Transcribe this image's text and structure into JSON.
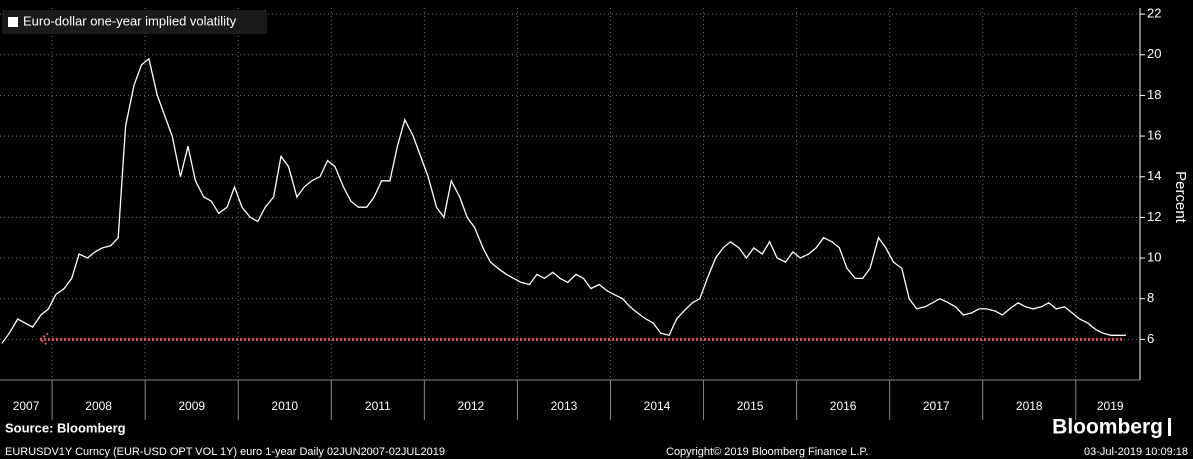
{
  "chart_data": {
    "type": "line",
    "series": [
      {
        "name": "Euro-dollar one-year implied volatility",
        "color": "#ffffff",
        "values": [
          5.8,
          6.3,
          7.0,
          6.8,
          6.6,
          7.2,
          7.5,
          8.2,
          8.5,
          9.0,
          10.2,
          10.0,
          10.3,
          10.5,
          10.6,
          11.0,
          16.5,
          18.5,
          19.5,
          19.8,
          18.0,
          17.0,
          16.0,
          14.0,
          15.5,
          13.8,
          13.0,
          12.8,
          12.2,
          12.5,
          13.5,
          12.5,
          12.0,
          11.8,
          12.5,
          13.0,
          15.0,
          14.5,
          13.0,
          13.5,
          13.8,
          14.0,
          14.8,
          14.5,
          13.5,
          12.8,
          12.5,
          12.5,
          13.0,
          13.8,
          13.8,
          15.5,
          16.8,
          16.0,
          15.0,
          14.0,
          12.5,
          12.0,
          13.8,
          13.0,
          12.0,
          11.5,
          10.5,
          9.8,
          9.5,
          9.2,
          9.0,
          8.8,
          8.7,
          9.2,
          9.0,
          9.3,
          9.0,
          8.8,
          9.2,
          9.0,
          8.5,
          8.7,
          8.4,
          8.2,
          8.0,
          7.6,
          7.3,
          7.0,
          6.8,
          6.3,
          6.2,
          7.0,
          7.4,
          7.8,
          8.0,
          9.0,
          10.0,
          10.5,
          10.8,
          10.5,
          10.0,
          10.5,
          10.2,
          10.8,
          10.0,
          9.8,
          10.3,
          10.0,
          10.2,
          10.5,
          11.0,
          10.8,
          10.5,
          9.5,
          9.0,
          9.0,
          9.5,
          11.0,
          10.5,
          9.8,
          9.5,
          8.0,
          7.5,
          7.6,
          7.8,
          8.0,
          7.8,
          7.6,
          7.2,
          7.3,
          7.5,
          7.5,
          7.4,
          7.2,
          7.5,
          7.8,
          7.6,
          7.5,
          7.6,
          7.8,
          7.5,
          7.6,
          7.3,
          7.0,
          6.8,
          6.5,
          6.3,
          6.2,
          6.2,
          6.2
        ]
      }
    ],
    "x": [
      2007.46,
      2007.54,
      2007.63,
      2007.71,
      2007.79,
      2007.88,
      2007.96,
      2008.04,
      2008.13,
      2008.21,
      2008.29,
      2008.38,
      2008.46,
      2008.54,
      2008.63,
      2008.71,
      2008.79,
      2008.88,
      2008.96,
      2009.04,
      2009.13,
      2009.21,
      2009.29,
      2009.38,
      2009.46,
      2009.54,
      2009.63,
      2009.71,
      2009.79,
      2009.88,
      2009.96,
      2010.04,
      2010.13,
      2010.21,
      2010.29,
      2010.38,
      2010.46,
      2010.54,
      2010.63,
      2010.71,
      2010.79,
      2010.88,
      2010.96,
      2011.04,
      2011.13,
      2011.21,
      2011.29,
      2011.38,
      2011.46,
      2011.54,
      2011.63,
      2011.71,
      2011.79,
      2011.88,
      2011.96,
      2012.04,
      2012.13,
      2012.21,
      2012.29,
      2012.38,
      2012.46,
      2012.54,
      2012.63,
      2012.71,
      2012.79,
      2012.88,
      2012.96,
      2013.04,
      2013.13,
      2013.21,
      2013.29,
      2013.38,
      2013.46,
      2013.54,
      2013.63,
      2013.71,
      2013.79,
      2013.88,
      2013.96,
      2014.04,
      2014.13,
      2014.21,
      2014.29,
      2014.38,
      2014.46,
      2014.54,
      2014.63,
      2014.71,
      2014.79,
      2014.88,
      2014.96,
      2015.04,
      2015.13,
      2015.21,
      2015.29,
      2015.38,
      2015.46,
      2015.54,
      2015.63,
      2015.71,
      2015.79,
      2015.88,
      2015.96,
      2016.04,
      2016.13,
      2016.21,
      2016.29,
      2016.38,
      2016.46,
      2016.54,
      2016.63,
      2016.71,
      2016.79,
      2016.88,
      2016.96,
      2017.04,
      2017.13,
      2017.21,
      2017.29,
      2017.38,
      2017.46,
      2017.54,
      2017.63,
      2017.71,
      2017.79,
      2017.88,
      2017.96,
      2018.04,
      2018.13,
      2018.21,
      2018.29,
      2018.38,
      2018.46,
      2018.54,
      2018.63,
      2018.71,
      2018.79,
      2018.88,
      2018.96,
      2019.04,
      2019.13,
      2019.21,
      2019.29,
      2019.38,
      2019.46,
      2019.54
    ],
    "xlim": [
      2007.44,
      2019.69
    ],
    "xticks": [
      {
        "value": 2007.72,
        "label": "2007"
      },
      {
        "value": 2008.5,
        "label": "2008"
      },
      {
        "value": 2009.5,
        "label": "2009"
      },
      {
        "value": 2010.5,
        "label": "2010"
      },
      {
        "value": 2011.5,
        "label": "2011"
      },
      {
        "value": 2012.5,
        "label": "2012"
      },
      {
        "value": 2013.5,
        "label": "2013"
      },
      {
        "value": 2014.5,
        "label": "2014"
      },
      {
        "value": 2015.5,
        "label": "2015"
      },
      {
        "value": 2016.5,
        "label": "2016"
      },
      {
        "value": 2017.5,
        "label": "2017"
      },
      {
        "value": 2018.5,
        "label": "2018"
      },
      {
        "value": 2019.37,
        "label": "2019"
      }
    ],
    "xgrid": [
      2008,
      2009,
      2010,
      2011,
      2012,
      2013,
      2014,
      2015,
      2016,
      2017,
      2018,
      2019
    ],
    "ylim": [
      4,
      22.3
    ],
    "yticks": [
      6,
      8,
      10,
      12,
      14,
      16,
      18,
      20,
      22
    ],
    "y_label": "Percent",
    "grid": true,
    "hline": 6,
    "hline_x": [
      2007.87,
      2019.5
    ],
    "hline_color": "#e05555"
  },
  "footer": {
    "source": "Source: Bloomberg",
    "description": "EURUSDV1Y Curncy (EUR-USD OPT VOL 1Y) euro 1-year  Daily 02JUN2007-02JUL2019",
    "copyright": "Copyright© 2019 Bloomberg Finance L.P.",
    "logo": "Bloomberg",
    "timestamp": "03-Jul-2019 10:09:18"
  }
}
